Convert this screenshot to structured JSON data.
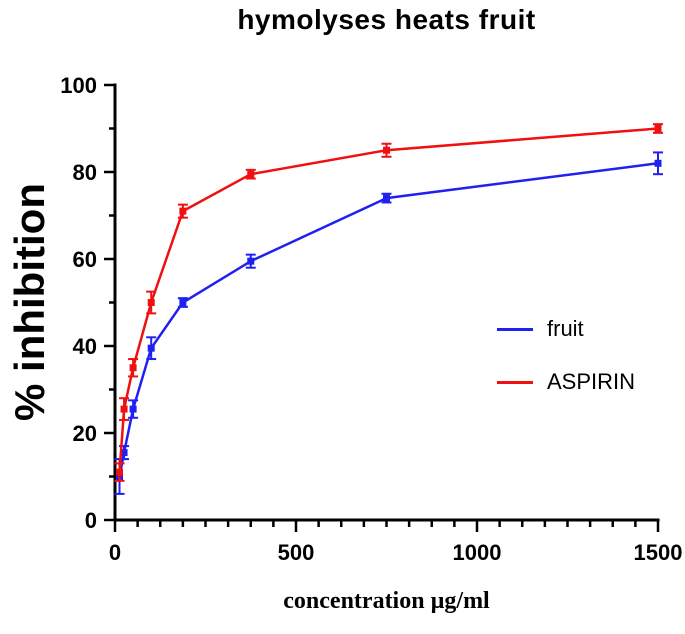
{
  "chart_data": {
    "type": "line",
    "title": "hymolyses heats fruit",
    "xlabel": "concentration µg/ml",
    "ylabel": "% inhibition",
    "xlim": [
      0,
      1500
    ],
    "ylim": [
      0,
      100
    ],
    "x_major_ticks": [
      0,
      500,
      1000,
      1500
    ],
    "x_minor_step": 62.5,
    "y_major_ticks": [
      0,
      20,
      40,
      60,
      80,
      100
    ],
    "y_minor_step": 10,
    "grid": false,
    "legend_position": "right-middle",
    "axis_color": "#000000",
    "x": [
      12.5,
      25,
      50,
      100,
      187.5,
      375,
      750,
      1500
    ],
    "series": [
      {
        "name": "fruit",
        "color": "#2020f0",
        "values": [
          10,
          15.5,
          25.5,
          39.5,
          50,
          59.5,
          74,
          82
        ],
        "errors": [
          4,
          1.5,
          2,
          2.5,
          1,
          1.5,
          1,
          2.5
        ]
      },
      {
        "name": "ASPIRIN",
        "color": "#f01010",
        "values": [
          11,
          25.5,
          35,
          50,
          71,
          79.5,
          85,
          90
        ],
        "errors": [
          2,
          2.5,
          2,
          2.5,
          1.5,
          1,
          1.5,
          1
        ]
      }
    ]
  }
}
